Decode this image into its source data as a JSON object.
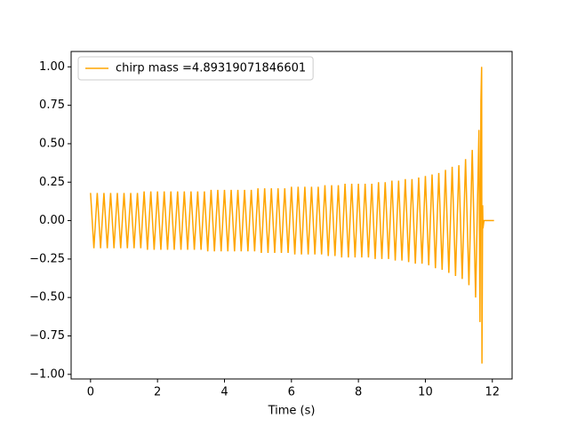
{
  "chart_data": {
    "type": "line",
    "xlabel": "Time (s)",
    "x": [
      0,
      0.1,
      0.2,
      0.3,
      0.4,
      0.5,
      0.6,
      0.7,
      0.8,
      0.9,
      1,
      1.1,
      1.2,
      1.3,
      1.4,
      1.5,
      1.6,
      1.7,
      1.8,
      1.9,
      2,
      2.1,
      2.2,
      2.3,
      2.4,
      2.5,
      2.6,
      2.7,
      2.8,
      2.9,
      3,
      3.1,
      3.2,
      3.3,
      3.4,
      3.5,
      3.6,
      3.7,
      3.8,
      3.9,
      4,
      4.1,
      4.2,
      4.3,
      4.4,
      4.5,
      4.6,
      4.7,
      4.8,
      4.9,
      5,
      5.1,
      5.2,
      5.3,
      5.4,
      5.5,
      5.6,
      5.7,
      5.8,
      5.9,
      6,
      6.1,
      6.2,
      6.3,
      6.4,
      6.5,
      6.6,
      6.7,
      6.8,
      6.9,
      7,
      7.1,
      7.2,
      7.3,
      7.4,
      7.5,
      7.6,
      7.7,
      7.8,
      7.9,
      8,
      8.1,
      8.2,
      8.3,
      8.4,
      8.5,
      8.6,
      8.7,
      8.8,
      8.9,
      9,
      9.1,
      9.2,
      9.3,
      9.4,
      9.5,
      9.6,
      9.7,
      9.8,
      9.9,
      10,
      10.1,
      10.2,
      10.3,
      10.4,
      10.5,
      10.6,
      10.7,
      10.8,
      10.9,
      11,
      11.1,
      11.2,
      11.3,
      11.4,
      11.5,
      11.6,
      11.63,
      11.66,
      11.68,
      11.69,
      11.71,
      11.72,
      11.75,
      12.05
    ],
    "series": [
      {
        "name": "chirp mass =4.89319071846601",
        "color": "#ffa500",
        "values": [
          0.18,
          -0.18,
          0.18,
          -0.18,
          0.18,
          -0.18,
          0.18,
          -0.18,
          0.18,
          -0.18,
          0.18,
          -0.18,
          0.18,
          -0.18,
          0.18,
          -0.18,
          0.19,
          -0.19,
          0.19,
          -0.19,
          0.19,
          -0.19,
          0.19,
          -0.19,
          0.19,
          -0.19,
          0.19,
          -0.19,
          0.19,
          -0.19,
          0.19,
          -0.19,
          0.19,
          -0.19,
          0.19,
          -0.2,
          0.2,
          -0.2,
          0.2,
          -0.2,
          0.2,
          -0.2,
          0.2,
          -0.2,
          0.2,
          -0.2,
          0.2,
          -0.2,
          0.2,
          -0.2,
          0.21,
          -0.21,
          0.21,
          -0.21,
          0.21,
          -0.21,
          0.21,
          -0.21,
          0.21,
          -0.21,
          0.22,
          -0.22,
          0.22,
          -0.22,
          0.22,
          -0.22,
          0.22,
          -0.22,
          0.22,
          -0.22,
          0.23,
          -0.23,
          0.23,
          -0.23,
          0.23,
          -0.24,
          0.24,
          -0.24,
          0.24,
          -0.24,
          0.24,
          -0.24,
          0.24,
          -0.24,
          0.24,
          -0.25,
          0.25,
          -0.25,
          0.25,
          -0.25,
          0.26,
          -0.26,
          0.26,
          -0.26,
          0.27,
          -0.27,
          0.27,
          -0.28,
          0.28,
          -0.28,
          0.29,
          -0.29,
          0.3,
          -0.31,
          0.31,
          -0.32,
          0.33,
          -0.34,
          0.35,
          -0.36,
          0.36,
          -0.38,
          0.4,
          -0.42,
          0.46,
          -0.5,
          0.59,
          -0.66,
          0.78,
          1.0,
          -0.93,
          0.1,
          -0.05,
          0,
          0
        ]
      }
    ],
    "xlim": [
      -0.58,
      12.59
    ],
    "ylim": [
      -1.03,
      1.1
    ],
    "xticks": [
      0,
      2,
      4,
      6,
      8,
      10,
      12
    ],
    "yticks": [
      {
        "value": -1,
        "label": "−1.00"
      },
      {
        "value": -0.75,
        "label": "−0.75"
      },
      {
        "value": -0.5,
        "label": "−0.50"
      },
      {
        "value": -0.25,
        "label": "−0.25"
      },
      {
        "value": 0,
        "label": "0.00"
      },
      {
        "value": 0.25,
        "label": "0.25"
      },
      {
        "value": 0.5,
        "label": "0.50"
      },
      {
        "value": 0.75,
        "label": "0.75"
      },
      {
        "value": 1,
        "label": "1.00"
      }
    ],
    "legend": "upper left"
  }
}
